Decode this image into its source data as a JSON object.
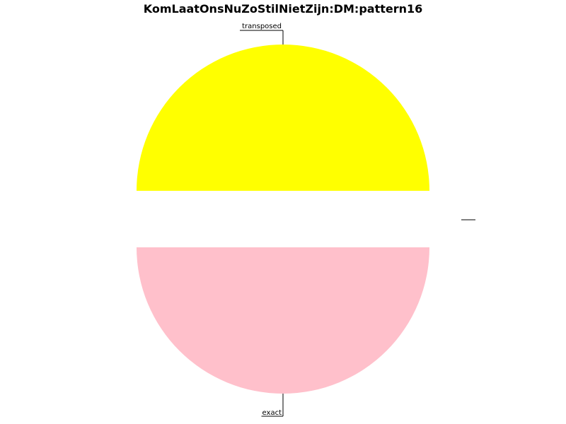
{
  "chart_data": {
    "type": "pie",
    "title": "KomLaatOnsNuZoStilNietZijn:DM:pattern16",
    "slices": [
      {
        "label": "transposed",
        "value": 1,
        "color": "#ffff00"
      },
      {
        "label": "exact",
        "value": 1,
        "color": "#ffc0cb"
      },
      {
        "label": "",
        "value": 0.0
      },
      {
        "label": "",
        "value": 0.0
      }
    ],
    "explode": true,
    "legend": "none"
  }
}
